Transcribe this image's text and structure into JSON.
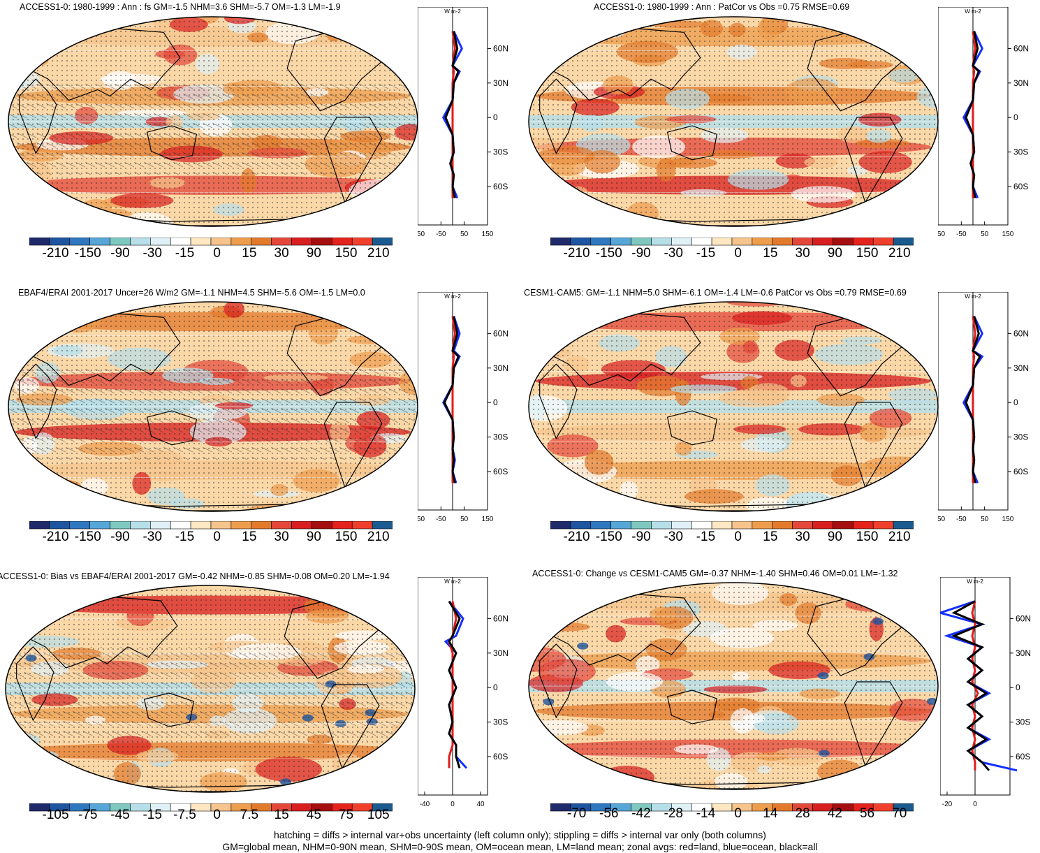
{
  "panels": [
    {
      "title": "ACCESS1-0: 1980-1999 : Ann : fs GM=-1.5 NHM=3.6 SHM=-5.7 OM=-1.3 LM=-1.9",
      "colorbar_labels": [
        "-210",
        "-150",
        "-90",
        "-30",
        "-15",
        "0",
        "15",
        "30",
        "90",
        "150",
        "210"
      ],
      "zonal_xticks": [
        "-150",
        "-50",
        "50",
        "150"
      ],
      "hatching": true
    },
    {
      "title": "ACCESS1-0: 1980-1999 : Ann : PatCor vs Obs =0.75 RMSE=0.69",
      "colorbar_labels": [
        "-210",
        "-150",
        "-90",
        "-30",
        "-15",
        "0",
        "15",
        "30",
        "90",
        "150",
        "210"
      ],
      "zonal_xticks": [
        "-150",
        "-50",
        "50",
        "150"
      ],
      "hatching": false
    },
    {
      "title": "EBAF4/ERAI 2001-2017 Uncer=26 W/m2 GM=-1.1 NHM=4.5 SHM=-5.6 OM=-1.5 LM=0.0",
      "colorbar_labels": [
        "-210",
        "-150",
        "-90",
        "-30",
        "-15",
        "0",
        "15",
        "30",
        "90",
        "150",
        "210"
      ],
      "zonal_xticks": [
        "-150",
        "-50",
        "50",
        "150"
      ],
      "hatching": true
    },
    {
      "title": "CESM1-CAM5: GM=-1.1 NHM=5.0 SHM=-6.1 OM=-1.4 LM=-0.6 PatCor vs Obs =0.79 RMSE=0.69",
      "colorbar_labels": [
        "-210",
        "-150",
        "-90",
        "-30",
        "-15",
        "0",
        "15",
        "30",
        "90",
        "150",
        "210"
      ],
      "zonal_xticks": [
        "-150",
        "-50",
        "50",
        "150"
      ],
      "hatching": false
    },
    {
      "title": "ACCESS1-0: Bias vs EBAF4/ERAI 2001-2017 GM=-0.42 NHM=-0.85 SHM=-0.08 OM=0.20 LM=-1.94",
      "colorbar_labels": [
        "-105",
        "-75",
        "-45",
        "-15",
        "-7.5",
        "0",
        "7.5",
        "15",
        "45",
        "75",
        "105"
      ],
      "zonal_xticks": [
        "-40",
        "0",
        "40"
      ],
      "hatching": true
    },
    {
      "title": "ACCESS1-0: Change vs CESM1-CAM5 GM=-0.37 NHM=-1.40 SHM=0.46 OM=0.01 LM=-1.32",
      "colorbar_labels": [
        "-70",
        "-56",
        "-42",
        "-28",
        "-14",
        "0",
        "14",
        "28",
        "42",
        "56",
        "70"
      ],
      "zonal_xticks": [
        "-20",
        "0"
      ],
      "hatching": false
    }
  ],
  "zonal_unit": "W m-2",
  "lat_ticks": [
    "60N",
    "30N",
    "0",
    "30S",
    "60S"
  ],
  "colors": {
    "palette": [
      "#1f2a6b",
      "#1d55a1",
      "#2f78c0",
      "#56a6d8",
      "#7ec8c0",
      "#b6dfe9",
      "#dff1f6",
      "#ffffff",
      "#ffe7c2",
      "#f6c48c",
      "#ee9d4d",
      "#e37a2b",
      "#e4473a",
      "#d81e1e",
      "#a50f0f",
      "#e5231c",
      "#f0402c",
      "#1a5a8e"
    ],
    "ocean_land": "#fbd8a8",
    "zonal_land": "#e51b1b",
    "zonal_ocean": "#1530ff",
    "zonal_all": "#000000"
  },
  "chart_data": [
    {
      "type": "heatmap",
      "title": "ACCESS1-0: 1980-1999 : Ann : fs GM=-1.5 NHM=3.6 SHM=-5.7 OM=-1.3 LM=-1.9",
      "zonal_mean": {
        "lat": [
          75,
          60,
          45,
          40,
          30,
          15,
          0,
          -15,
          -30,
          -40,
          -50,
          -60,
          -70
        ],
        "ocean": [
          5,
          40,
          0,
          30,
          5,
          0,
          -40,
          0,
          5,
          -10,
          5,
          0,
          20
        ],
        "land": [
          0,
          10,
          0,
          5,
          0,
          0,
          0,
          0,
          0,
          0,
          0,
          0,
          0
        ],
        "all": [
          5,
          20,
          0,
          25,
          5,
          0,
          -30,
          0,
          5,
          -10,
          5,
          0,
          10
        ]
      }
    },
    {
      "type": "heatmap",
      "title": "ACCESS1-0: 1980-1999 : Ann : PatCor vs Obs =0.75 RMSE=0.69",
      "zonal_mean": {
        "lat": [
          75,
          60,
          45,
          40,
          30,
          15,
          0,
          -15,
          -30,
          -40,
          -50,
          -60,
          -70
        ],
        "ocean": [
          5,
          40,
          0,
          30,
          5,
          0,
          -40,
          0,
          5,
          -10,
          5,
          0,
          20
        ],
        "land": [
          0,
          10,
          0,
          5,
          0,
          0,
          0,
          0,
          0,
          0,
          0,
          0,
          0
        ],
        "all": [
          5,
          20,
          0,
          25,
          5,
          0,
          -30,
          0,
          5,
          -10,
          5,
          0,
          10
        ]
      }
    },
    {
      "type": "heatmap",
      "title": "EBAF4/ERAI 2001-2017 Uncer=26 W/m2 GM=-1.1 NHM=4.5 SHM=-5.6 OM=-1.5 LM=0.0",
      "zonal_mean": {
        "lat": [
          75,
          60,
          45,
          40,
          30,
          15,
          0,
          -15,
          -30,
          -40,
          -50,
          -60,
          -70
        ],
        "ocean": [
          5,
          30,
          5,
          30,
          5,
          0,
          -40,
          0,
          5,
          0,
          10,
          0,
          15
        ],
        "land": [
          0,
          10,
          0,
          5,
          0,
          0,
          0,
          0,
          0,
          0,
          0,
          0,
          0
        ],
        "all": [
          5,
          20,
          0,
          25,
          5,
          0,
          -35,
          0,
          5,
          0,
          5,
          0,
          10
        ]
      }
    },
    {
      "type": "heatmap",
      "title": "CESM1-CAM5: GM=-1.1 NHM=5.0 SHM=-6.1 OM=-1.4 LM=-0.6 PatCor vs Obs =0.79 RMSE=0.69",
      "zonal_mean": {
        "lat": [
          75,
          60,
          45,
          40,
          30,
          15,
          0,
          -15,
          -30,
          -40,
          -50,
          -60,
          -70
        ],
        "ocean": [
          5,
          40,
          0,
          40,
          5,
          0,
          -40,
          0,
          5,
          0,
          5,
          0,
          20
        ],
        "land": [
          0,
          10,
          0,
          5,
          0,
          0,
          0,
          0,
          0,
          0,
          0,
          0,
          0
        ],
        "all": [
          5,
          25,
          0,
          30,
          5,
          0,
          -30,
          0,
          5,
          0,
          5,
          0,
          10
        ]
      }
    },
    {
      "type": "heatmap",
      "title": "ACCESS1-0: Bias vs EBAF4/ERAI 2001-2017 GM=-0.42 NHM=-0.85 SHM=-0.08 OM=0.20 LM=-1.94",
      "zonal_mean": {
        "lat": [
          75,
          60,
          45,
          40,
          30,
          15,
          0,
          -15,
          -30,
          -40,
          -50,
          -60,
          -70
        ],
        "ocean": [
          -5,
          15,
          5,
          -10,
          5,
          -5,
          5,
          -5,
          0,
          -5,
          5,
          5,
          20
        ],
        "land": [
          0,
          5,
          0,
          -5,
          0,
          0,
          0,
          0,
          0,
          0,
          0,
          -5,
          -5
        ],
        "all": [
          -5,
          10,
          0,
          -5,
          5,
          -5,
          5,
          -5,
          0,
          -5,
          5,
          5,
          10
        ]
      }
    },
    {
      "type": "heatmap",
      "title": "ACCESS1-0: Change vs CESM1-CAM5 GM=-0.37 NHM=-1.40 SHM=0.46 OM=0.01 LM=-1.32",
      "zonal_mean": {
        "lat": [
          75,
          65,
          55,
          45,
          35,
          25,
          15,
          5,
          -5,
          -15,
          -25,
          -35,
          -45,
          -55,
          -65,
          -72
        ],
        "ocean": [
          0,
          -25,
          5,
          -20,
          5,
          -5,
          5,
          -5,
          10,
          -5,
          5,
          -5,
          10,
          -5,
          5,
          30
        ],
        "land": [
          0,
          -2,
          0,
          -2,
          0,
          -2,
          0,
          -2,
          2,
          -2,
          0,
          -2,
          0,
          -2,
          0,
          0
        ],
        "all": [
          0,
          -15,
          5,
          -15,
          5,
          -5,
          5,
          -5,
          8,
          -5,
          5,
          -5,
          8,
          -5,
          5,
          10
        ]
      }
    }
  ],
  "footer": [
    "hatching = diffs > internal var+obs uncertainty (left column only); stippling = diffs > internal var only (both columns)",
    "GM=global mean, NHM=0-90N mean, SHM=0-90S mean, OM=ocean mean, LM=land mean; zonal avgs: red=land, blue=ocean, black=all"
  ]
}
